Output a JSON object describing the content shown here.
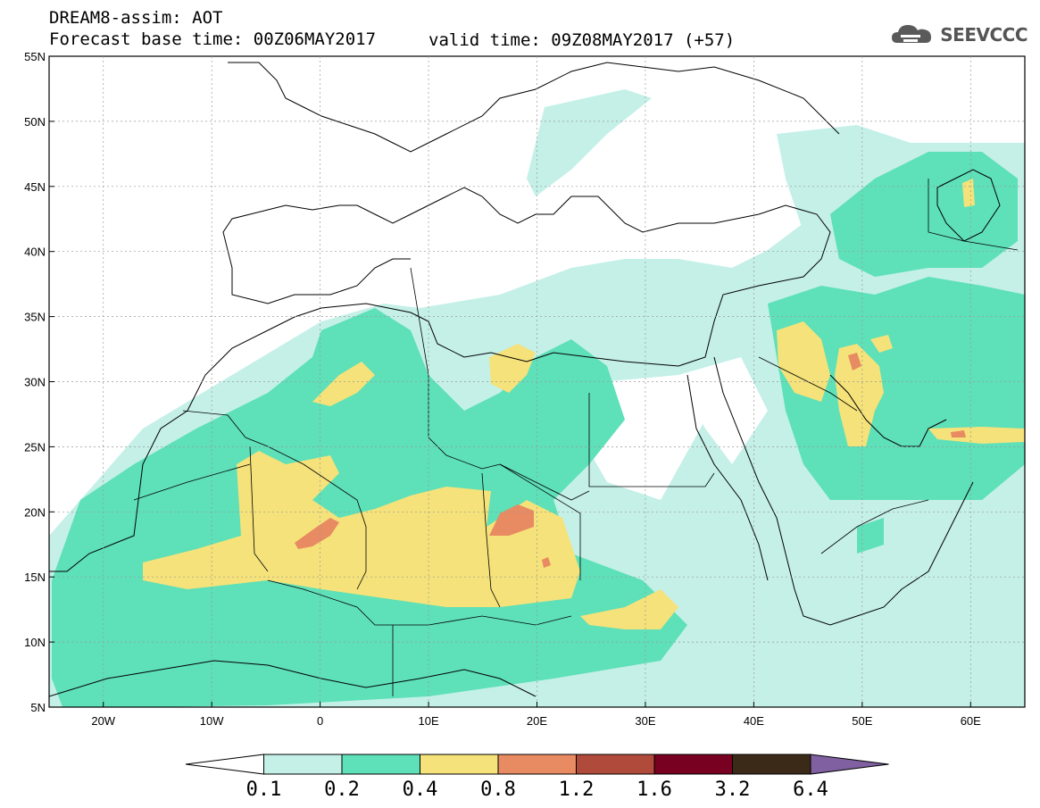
{
  "header": {
    "title_line1": "DREAM8-assim: AOT",
    "title_line2": "Forecast base time: 00Z06MAY2017",
    "valid_time": "valid time: 09Z08MAY2017 (+57)",
    "logo_text": "SEEVCCC"
  },
  "map": {
    "lon_range": [
      -25,
      65
    ],
    "lat_range": [
      5,
      55
    ],
    "lat_labels": [
      "55N",
      "50N",
      "45N",
      "40N",
      "35N",
      "30N",
      "25N",
      "20N",
      "15N",
      "10N",
      "5N"
    ],
    "lon_labels": [
      "20W",
      "10W",
      "0",
      "10E",
      "20E",
      "30E",
      "40E",
      "50E",
      "60E"
    ]
  },
  "colorbar": {
    "labels": [
      "0.1",
      "0.2",
      "0.4",
      "0.8",
      "1.2",
      "1.6",
      "3.2",
      "6.4"
    ],
    "colors": [
      "#ffffff",
      "#c4f0e8",
      "#5ee0b8",
      "#f5e27a",
      "#e88a62",
      "#b04a3a",
      "#780020",
      "#3c2a18",
      "#8060a0"
    ]
  }
}
